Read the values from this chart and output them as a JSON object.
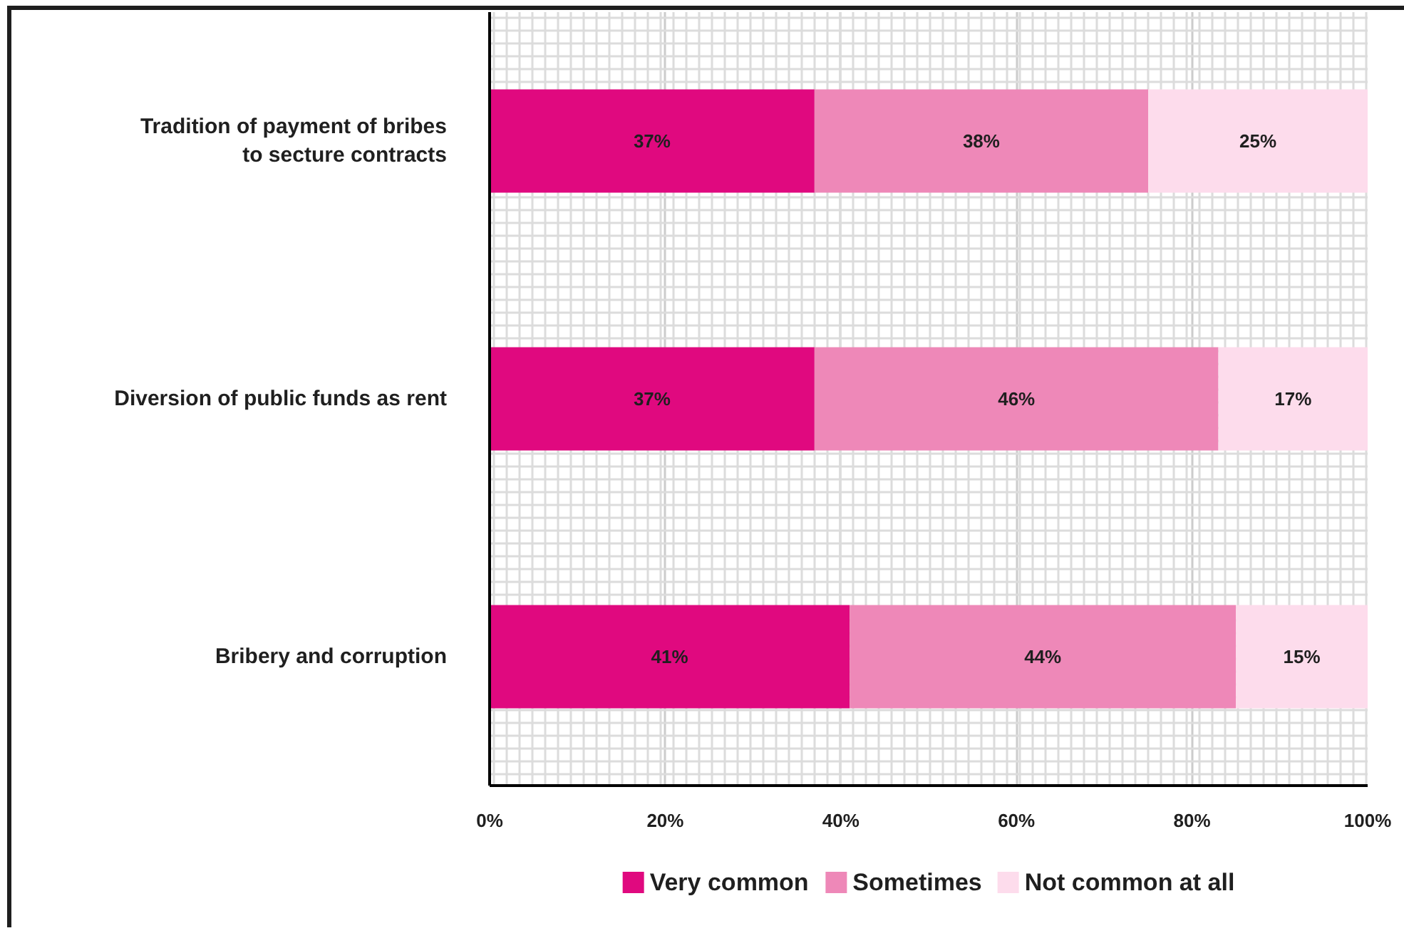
{
  "chart_data": {
    "type": "bar",
    "orientation": "horizontal",
    "stacked": true,
    "categories": [
      "Tradition of payment of bribes to secture contracts",
      "Diversion of public funds as rent",
      "Bribery and corruption"
    ],
    "series": [
      {
        "name": "Very common",
        "color": "#e0097f",
        "values": [
          37,
          37,
          41
        ],
        "value_labels": [
          "37%",
          "37%",
          "41%"
        ]
      },
      {
        "name": "Sometimes",
        "color": "#ee88b8",
        "values": [
          38,
          46,
          44
        ],
        "value_labels": [
          "38%",
          "46%",
          "44%"
        ]
      },
      {
        "name": "Not common at all",
        "color": "#fddcec",
        "values": [
          25,
          17,
          15
        ],
        "value_labels": [
          "25%",
          "17%",
          "15%"
        ]
      }
    ],
    "xlim": [
      0,
      100
    ],
    "xticks": [
      {
        "value": 0,
        "label": "0%"
      },
      {
        "value": 20,
        "label": "20%"
      },
      {
        "value": 40,
        "label": "40%"
      },
      {
        "value": 60,
        "label": "60%"
      },
      {
        "value": 80,
        "label": "80%"
      },
      {
        "value": 100,
        "label": "100%"
      }
    ],
    "grid": true,
    "legend": "bottom"
  }
}
